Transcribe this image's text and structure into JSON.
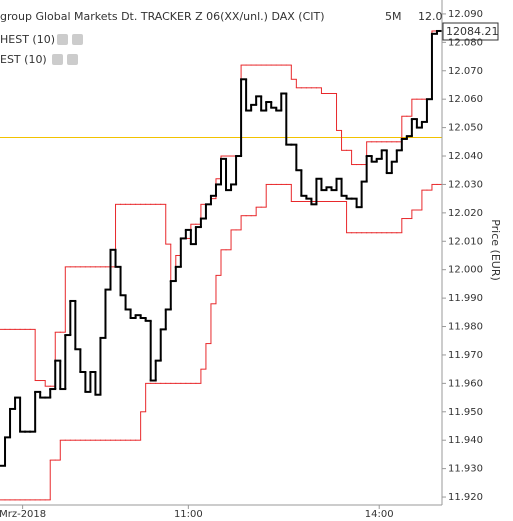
{
  "chart_data": {
    "type": "step",
    "title": "group Global Markets Dt. TRACKER Z 06(XX/unl.) DAX (CIT)",
    "interval": "5M",
    "last_label": "12.0",
    "last_label_color": "#2e9e2e",
    "price_label": "12084.21",
    "y_label": "Price (EUR)",
    "categories": [
      null,
      null,
      null,
      null,
      "Mrz-2018",
      null,
      null,
      null,
      null,
      null,
      null,
      null,
      null,
      null,
      null,
      null,
      null,
      null,
      null,
      null,
      null,
      null,
      null,
      null,
      null,
      null,
      null,
      null,
      null,
      null,
      null,
      null,
      null,
      null,
      null,
      null,
      null,
      "11:00",
      null,
      null,
      null,
      null,
      null,
      null,
      null,
      null,
      null,
      null,
      null,
      null,
      null,
      null,
      null,
      null,
      null,
      null,
      null,
      null,
      null,
      null,
      null,
      null,
      null,
      null,
      null,
      null,
      null,
      null,
      null,
      null,
      null,
      null,
      null,
      null,
      null,
      "14:00",
      null,
      null,
      null,
      null,
      null,
      null,
      null,
      null,
      null,
      null,
      null,
      null
    ],
    "series": [
      {
        "name": "HEST (10)",
        "color": "#e8282b",
        "width": 1,
        "values": [
          11.979,
          11.979,
          11.979,
          11.979,
          11.979,
          11.979,
          11.979,
          11.961,
          11.961,
          11.959,
          11.959,
          11.978,
          11.978,
          12.001,
          12.001,
          12.001,
          12.001,
          12.001,
          12.001,
          12.001,
          12.001,
          12.001,
          12.001,
          12.023,
          12.023,
          12.023,
          12.023,
          12.023,
          12.023,
          12.023,
          12.023,
          12.023,
          12.023,
          12.009,
          11.996,
          12.005,
          12.011,
          12.011,
          12.016,
          12.016,
          12.023,
          12.023,
          12.025,
          12.032,
          12.04,
          12.04,
          12.04,
          12.04,
          12.072,
          12.072,
          12.072,
          12.072,
          12.072,
          12.072,
          12.072,
          12.072,
          12.072,
          12.072,
          12.067,
          12.064,
          12.064,
          12.064,
          12.064,
          12.064,
          12.062,
          12.062,
          12.062,
          12.049,
          12.042,
          12.042,
          12.037,
          12.037,
          12.037,
          12.045,
          12.045,
          12.045,
          12.045,
          12.045,
          12.045,
          12.045,
          12.054,
          12.054,
          12.06,
          12.06,
          12.06,
          12.06,
          12.084,
          12.084
        ]
      },
      {
        "name": "EST (10)",
        "color": "#e8282b",
        "width": 1,
        "values": [
          11.919,
          11.919,
          11.919,
          11.919,
          11.919,
          11.919,
          11.919,
          11.919,
          11.919,
          11.919,
          11.933,
          11.933,
          11.94,
          11.94,
          11.94,
          11.94,
          11.94,
          11.94,
          11.94,
          11.94,
          11.94,
          11.94,
          11.94,
          11.94,
          11.94,
          11.94,
          11.94,
          11.94,
          11.95,
          11.96,
          11.96,
          11.96,
          11.96,
          11.96,
          11.96,
          11.96,
          11.96,
          11.96,
          11.96,
          11.96,
          11.965,
          11.974,
          11.988,
          11.998,
          12.007,
          12.007,
          12.014,
          12.014,
          12.019,
          12.019,
          12.019,
          12.022,
          12.022,
          12.03,
          12.03,
          12.03,
          12.03,
          12.03,
          12.024,
          12.024,
          12.024,
          12.024,
          12.024,
          12.024,
          12.024,
          12.024,
          12.024,
          12.024,
          12.024,
          12.013,
          12.013,
          12.013,
          12.013,
          12.013,
          12.013,
          12.013,
          12.013,
          12.013,
          12.013,
          12.013,
          12.018,
          12.018,
          12.021,
          12.021,
          12.028,
          12.028,
          12.03,
          12.03
        ]
      },
      {
        "color": "#000000",
        "width": 2,
        "values": [
          11.931,
          11.941,
          11.951,
          11.955,
          11.943,
          11.943,
          11.943,
          11.957,
          11.955,
          11.955,
          11.958,
          11.968,
          11.958,
          11.977,
          11.989,
          11.972,
          11.964,
          11.957,
          11.964,
          11.956,
          11.976,
          11.993,
          12.007,
          12.001,
          11.991,
          11.986,
          11.983,
          11.984,
          11.983,
          11.982,
          11.961,
          11.968,
          11.979,
          11.986,
          11.996,
          12.001,
          12.011,
          12.014,
          12.009,
          12.015,
          12.018,
          12.023,
          12.026,
          12.03,
          12.039,
          12.028,
          12.03,
          12.04,
          12.067,
          12.056,
          12.058,
          12.061,
          12.056,
          12.059,
          12.057,
          12.056,
          12.062,
          12.044,
          12.044,
          12.035,
          12.026,
          12.025,
          12.023,
          12.032,
          12.028,
          12.029,
          12.028,
          12.032,
          12.026,
          12.025,
          12.025,
          12.022,
          12.031,
          12.04,
          12.038,
          12.039,
          12.042,
          12.034,
          12.038,
          12.042,
          12.046,
          12.047,
          12.053,
          12.05,
          12.052,
          12.06,
          12.083,
          12.084
        ]
      }
    ],
    "hline": 12.0465,
    "hline_color": "#f2c200",
    "ylim": [
      11.9172,
      12.0949
    ],
    "yticks": [
      {
        "value": 11.92,
        "label": "11.920"
      },
      {
        "value": 11.93,
        "label": "11.930"
      },
      {
        "value": 11.94,
        "label": "11.940"
      },
      {
        "value": 11.95,
        "label": "11.950"
      },
      {
        "value": 11.96,
        "label": "11.960"
      },
      {
        "value": 11.97,
        "label": "11.970"
      },
      {
        "value": 11.98,
        "label": "11.980"
      },
      {
        "value": 11.99,
        "label": "11.990"
      },
      {
        "value": 12.0,
        "label": "12.000"
      },
      {
        "value": 12.01,
        "label": "12.010"
      },
      {
        "value": 12.02,
        "label": "12.020"
      },
      {
        "value": 12.03,
        "label": "12.030"
      },
      {
        "value": 12.04,
        "label": "12.040"
      },
      {
        "value": 12.05,
        "label": "12.050"
      },
      {
        "value": 12.06,
        "label": "12.060"
      },
      {
        "value": 12.07,
        "label": "12.070"
      },
      {
        "value": 12.08,
        "label": "12.080"
      },
      {
        "value": 12.09,
        "label": "12.090"
      }
    ]
  }
}
